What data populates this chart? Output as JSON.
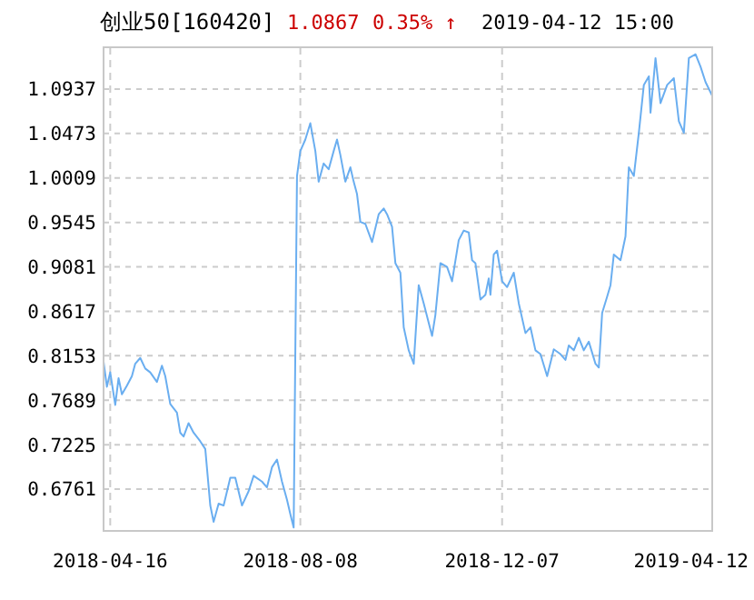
{
  "chart_data": {
    "type": "line",
    "title": "创业50[160420]",
    "annotations": [
      "1.0867",
      "0.35% ↑",
      "2019-04-12 15:00"
    ],
    "xlim": [
      "2018-04-12",
      "2019-04-12"
    ],
    "xticks": [
      "2018-04-16",
      "2018-08-08",
      "2018-12-07",
      "2019-04-12"
    ],
    "ylim": [
      0.6325,
      1.1373
    ],
    "yticks": [
      0.6761,
      0.7225,
      0.7689,
      0.8153,
      0.8617,
      0.9081,
      0.9545,
      1.0009,
      1.0473,
      1.0937
    ],
    "grid": true,
    "marker": "none",
    "line_style": "solid",
    "series": [
      {
        "color": "#6aaef0",
        "x": [
          "2018-04-12",
          "2018-04-14",
          "2018-04-16",
          "2018-04-19",
          "2018-04-21",
          "2018-04-23",
          "2018-04-26",
          "2018-04-29",
          "2018-05-01",
          "2018-05-04",
          "2018-05-07",
          "2018-05-10",
          "2018-05-14",
          "2018-05-17",
          "2018-05-19",
          "2018-05-22",
          "2018-05-26",
          "2018-05-28",
          "2018-05-30",
          "2018-06-02",
          "2018-06-05",
          "2018-06-09",
          "2018-06-12",
          "2018-06-15",
          "2018-06-17",
          "2018-06-20",
          "2018-06-23",
          "2018-06-27",
          "2018-06-30",
          "2018-07-04",
          "2018-07-08",
          "2018-07-11",
          "2018-07-16",
          "2018-07-19",
          "2018-07-22",
          "2018-07-25",
          "2018-07-28",
          "2018-07-31",
          "2018-08-02",
          "2018-08-04",
          "2018-08-06",
          "2018-08-08",
          "2018-08-11",
          "2018-08-14",
          "2018-08-17",
          "2018-08-19",
          "2018-08-22",
          "2018-08-25",
          "2018-08-28",
          "2018-08-30",
          "2018-09-01",
          "2018-09-04",
          "2018-09-07",
          "2018-09-09",
          "2018-09-11",
          "2018-09-13",
          "2018-09-16",
          "2018-09-20",
          "2018-09-24",
          "2018-09-27",
          "2018-09-29",
          "2018-10-02",
          "2018-10-04",
          "2018-10-07",
          "2018-10-09",
          "2018-10-12",
          "2018-10-15",
          "2018-10-18",
          "2018-10-21",
          "2018-10-26",
          "2018-10-28",
          "2018-10-31",
          "2018-11-04",
          "2018-11-07",
          "2018-11-11",
          "2018-11-14",
          "2018-11-17",
          "2018-11-19",
          "2018-11-21",
          "2018-11-24",
          "2018-11-27",
          "2018-11-29",
          "2018-11-30",
          "2018-12-02",
          "2018-12-04",
          "2018-12-07",
          "2018-12-10",
          "2018-12-14",
          "2018-12-17",
          "2018-12-21",
          "2018-12-24",
          "2018-12-27",
          "2018-12-30",
          "2019-01-03",
          "2019-01-07",
          "2019-01-11",
          "2019-01-14",
          "2019-01-16",
          "2019-01-19",
          "2019-01-22",
          "2019-01-25",
          "2019-01-28",
          "2019-02-01",
          "2019-02-03",
          "2019-02-05",
          "2019-02-08",
          "2019-02-10",
          "2019-02-12",
          "2019-02-16",
          "2019-02-19",
          "2019-02-21",
          "2019-02-24",
          "2019-02-27",
          "2019-03-02",
          "2019-03-05",
          "2019-03-06",
          "2019-03-09",
          "2019-03-12",
          "2019-03-16",
          "2019-03-20",
          "2019-03-23",
          "2019-03-26",
          "2019-03-29",
          "2019-04-02",
          "2019-04-05",
          "2019-04-08",
          "2019-04-12"
        ],
        "values": [
          0.809,
          0.783,
          0.798,
          0.764,
          0.792,
          0.775,
          0.784,
          0.794,
          0.807,
          0.813,
          0.802,
          0.798,
          0.788,
          0.805,
          0.794,
          0.765,
          0.756,
          0.735,
          0.731,
          0.745,
          0.735,
          0.726,
          0.718,
          0.659,
          0.642,
          0.661,
          0.659,
          0.688,
          0.688,
          0.659,
          0.674,
          0.69,
          0.684,
          0.678,
          0.699,
          0.707,
          0.684,
          0.665,
          0.65,
          0.636,
          1.003,
          1.029,
          1.041,
          1.058,
          1.029,
          0.997,
          1.016,
          1.01,
          1.029,
          1.041,
          1.025,
          0.997,
          1.012,
          0.997,
          0.984,
          0.955,
          0.953,
          0.934,
          0.963,
          0.969,
          0.963,
          0.95,
          0.912,
          0.902,
          0.845,
          0.821,
          0.807,
          0.889,
          0.87,
          0.836,
          0.858,
          0.912,
          0.908,
          0.893,
          0.936,
          0.946,
          0.944,
          0.915,
          0.912,
          0.874,
          0.879,
          0.896,
          0.879,
          0.921,
          0.925,
          0.893,
          0.887,
          0.902,
          0.87,
          0.839,
          0.845,
          0.821,
          0.817,
          0.794,
          0.822,
          0.817,
          0.811,
          0.826,
          0.821,
          0.834,
          0.821,
          0.83,
          0.807,
          0.803,
          0.86,
          0.877,
          0.889,
          0.921,
          0.915,
          0.94,
          1.012,
          1.003,
          1.048,
          1.098,
          1.107,
          1.069,
          1.126,
          1.079,
          1.098,
          1.105,
          1.06,
          1.048,
          1.126,
          1.13,
          1.117,
          1.101,
          1.0867
        ]
      }
    ]
  }
}
